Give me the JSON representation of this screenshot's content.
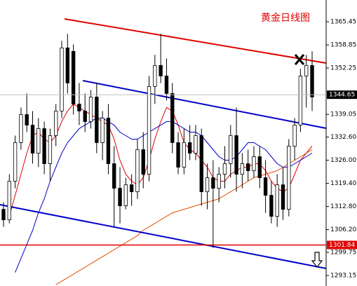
{
  "chart_data": {
    "type": "candlestick",
    "title": "黄金日线图",
    "ylim": [
      1290.15,
      1371.64
    ],
    "yticks": [
      1365.45,
      1358.85,
      1352.25,
      1339.05,
      {
        "value": 1332.6,
        "label": "1332.60"
      },
      {
        "value": 1326,
        "label": "1326.00"
      },
      {
        "value": 1319.4,
        "label": "1319.40"
      },
      {
        "value": 1312.8,
        "label": "1312.80"
      },
      {
        "value": 1306.2,
        "label": "1306.20"
      },
      1299.75,
      1293.15
    ],
    "current_price": 1344.65,
    "current_price_color": "#000000",
    "level": 1301.84,
    "level_color": "#e00000",
    "up_color": "#ffffff",
    "down_color": "#000000",
    "open": [
      1312,
      1309,
      1320,
      1331,
      1339,
      1336,
      1328,
      1335,
      1325,
      1333,
      1340,
      1358,
      1357,
      1342,
      1340,
      1337,
      1344,
      1331,
      1338,
      1325,
      1318,
      1313,
      1319,
      1317,
      1329,
      1322,
      1347,
      1353,
      1350,
      1345,
      1331,
      1324,
      1331,
      1328,
      1333,
      1317,
      1321,
      1318,
      1322,
      1325,
      1333,
      1322,
      1325,
      1323,
      1327,
      1321,
      1316,
      1310,
      1319,
      1312,
      1330,
      1336,
      1350,
      1353
    ],
    "high": [
      1314,
      1322,
      1333,
      1341,
      1345,
      1340,
      1338,
      1337,
      1335,
      1342,
      1360,
      1362,
      1359,
      1348,
      1345,
      1346,
      1348,
      1340,
      1342,
      1330,
      1324,
      1321,
      1322,
      1332,
      1334,
      1350,
      1356,
      1362,
      1355,
      1348,
      1334,
      1335,
      1336,
      1336,
      1335,
      1325,
      1326,
      1324,
      1330,
      1336,
      1341,
      1328,
      1329,
      1330,
      1330,
      1326,
      1320,
      1322,
      1324,
      1332,
      1338,
      1352,
      1356,
      1357
    ],
    "low": [
      1307,
      1308,
      1318,
      1329,
      1334,
      1325,
      1324,
      1322,
      1320,
      1330,
      1338,
      1345,
      1339,
      1336,
      1334,
      1335,
      1328,
      1326,
      1322,
      1307,
      1308,
      1312,
      1313,
      1315,
      1318,
      1320,
      1342,
      1348,
      1343,
      1328,
      1322,
      1322,
      1326,
      1326,
      1313,
      1312,
      1301,
      1314,
      1318,
      1321,
      1317,
      1318,
      1320,
      1321,
      1318,
      1311,
      1308,
      1307,
      1309,
      1310,
      1326,
      1334,
      1341,
      1340
    ],
    "close": [
      1309,
      1320,
      1331,
      1339,
      1336,
      1328,
      1335,
      1325,
      1333,
      1340,
      1358,
      1348,
      1342,
      1340,
      1337,
      1344,
      1331,
      1338,
      1325,
      1318,
      1313,
      1319,
      1317,
      1329,
      1322,
      1347,
      1353,
      1350,
      1345,
      1331,
      1324,
      1331,
      1328,
      1333,
      1317,
      1321,
      1318,
      1322,
      1325,
      1333,
      1322,
      1325,
      1323,
      1327,
      1321,
      1316,
      1310,
      1319,
      1312,
      1330,
      1336,
      1350,
      1353,
      1344
    ],
    "overlays": [
      {
        "color": "#e00000",
        "values": [
          null,
          1310,
          1316,
          1322,
          1328,
          1333,
          1334,
          1332,
          1331,
          1333,
          1337,
          1340,
          1342,
          1341,
          1340,
          1339,
          1338,
          1337,
          1336,
          1332,
          1326,
          1322,
          1320,
          1319,
          1321,
          1326,
          1332,
          1337,
          1341,
          1340,
          1336,
          1331,
          1329,
          1328,
          1326,
          1324,
          1321,
          1320,
          1320,
          1322,
          1323,
          1324,
          1324,
          1325,
          1325,
          1323,
          1320,
          1318,
          1317,
          1318,
          1322,
          1326,
          1328,
          1330
        ]
      },
      {
        "color": "#0000c8",
        "values": [
          null,
          null,
          1294,
          1298,
          1302,
          1306,
          1311,
          1315,
          1320,
          1324,
          1328,
          1331,
          1333,
          1335,
          1336,
          1337,
          1338,
          1338,
          1337,
          1336,
          1334,
          1333,
          1332,
          1332,
          1333,
          1334,
          1335,
          1336,
          1337,
          1337,
          1336,
          1335,
          1334,
          1334,
          1333,
          1331,
          1329,
          1327,
          1326,
          1326,
          1327,
          1329,
          1331,
          1331,
          1330,
          1329,
          1327,
          1325,
          1324,
          1324,
          1325,
          1326,
          1327,
          1328
        ]
      },
      {
        "color": "#e05000",
        "values": [
          null,
          null,
          null,
          null,
          null,
          null,
          null,
          null,
          null,
          1290.5,
          1291.5,
          1292.5,
          1293.5,
          1294.5,
          1295.5,
          1296.5,
          1297.5,
          1298.5,
          1299.5,
          1300.5,
          1301.5,
          1302.5,
          1303.5,
          1304.5,
          1306,
          1307,
          1308,
          1309,
          1310,
          1311,
          1311.5,
          1312,
          1312.5,
          1313,
          1313.5,
          1314,
          1314.5,
          1315,
          1316,
          1317,
          1318,
          1319,
          1320,
          1321,
          1321.5,
          1322,
          1322.5,
          1323,
          1324,
          1325,
          1326,
          1327,
          1328,
          1329
        ]
      }
    ]
  }
}
